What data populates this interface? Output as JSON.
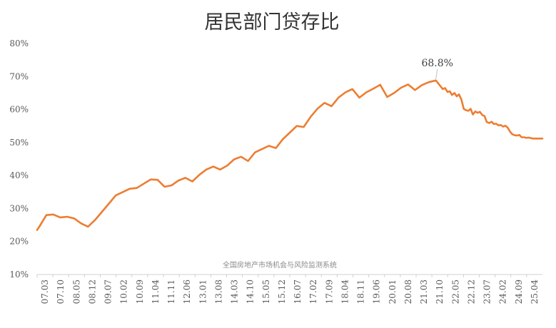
{
  "chart_data": {
    "type": "line",
    "title": "居民部门贷存比",
    "xlabel": "",
    "ylabel": "",
    "ylim": [
      10,
      80
    ],
    "yticks": [
      "80%",
      "70%",
      "60%",
      "50%",
      "40%",
      "30%",
      "20%",
      "10%"
    ],
    "ytick_values": [
      80,
      70,
      60,
      50,
      40,
      30,
      20,
      10
    ],
    "grid": false,
    "legend": "none",
    "line_color": "#ED7D31",
    "categories": [
      "07.03",
      "07.10",
      "08.05",
      "08.12",
      "09.07",
      "10.02",
      "10.09",
      "11.04",
      "11.11",
      "12.06",
      "13.01",
      "13.08",
      "14.03",
      "14.10",
      "15.05",
      "15.12",
      "16.07",
      "17.02",
      "17.09",
      "18.04",
      "18.11",
      "19.06",
      "20.01",
      "20.08",
      "21.03",
      "21.10",
      "22.05",
      "22.12",
      "23.07",
      "24.02",
      "24.09",
      "25.04"
    ],
    "x": [
      2007.17,
      2007.25,
      2007.5,
      2007.75,
      2008.0,
      2008.25,
      2008.5,
      2008.75,
      2009.0,
      2009.25,
      2009.5,
      2009.75,
      2010.0,
      2010.25,
      2010.5,
      2010.75,
      2011.0,
      2011.25,
      2011.5,
      2011.75,
      2012.0,
      2012.25,
      2012.5,
      2012.75,
      2013.0,
      2013.25,
      2013.5,
      2013.75,
      2014.0,
      2014.25,
      2014.5,
      2014.75,
      2015.0,
      2015.25,
      2015.5,
      2015.75,
      2016.0,
      2016.25,
      2016.5,
      2016.75,
      2017.0,
      2017.25,
      2017.5,
      2017.75,
      2018.0,
      2018.25,
      2018.5,
      2018.75,
      2019.0,
      2019.25,
      2019.5,
      2019.75,
      2020.0,
      2020.25,
      2020.5,
      2020.75,
      2021.0,
      2021.25,
      2021.5,
      2021.75,
      2021.83,
      2021.92,
      2022.0,
      2022.08,
      2022.17,
      2022.25,
      2022.33,
      2022.42,
      2022.5,
      2022.58,
      2022.67,
      2022.75,
      2022.83,
      2022.92,
      2023.0,
      2023.08,
      2023.17,
      2023.25,
      2023.33,
      2023.42,
      2023.5,
      2023.58,
      2023.67,
      2023.75,
      2023.83,
      2023.92,
      2024.0,
      2024.08,
      2024.17,
      2024.25,
      2024.33,
      2024.42,
      2024.5,
      2024.58,
      2024.67,
      2024.75,
      2024.83,
      2024.92,
      2025.0,
      2025.08,
      2025.17,
      2025.25,
      2025.33
    ],
    "values": [
      23.5,
      24.5,
      28.0,
      28.2,
      27.3,
      27.5,
      27.0,
      25.5,
      24.5,
      26.5,
      29.0,
      31.5,
      34.0,
      35.0,
      36.0,
      36.2,
      37.5,
      38.8,
      38.7,
      36.6,
      37.0,
      38.5,
      39.3,
      38.2,
      40.2,
      41.8,
      42.7,
      41.8,
      43.0,
      44.9,
      45.7,
      44.4,
      47.0,
      48.0,
      49.0,
      48.3,
      51.0,
      53.0,
      55.0,
      54.7,
      57.8,
      60.3,
      62.0,
      61.0,
      63.6,
      65.2,
      66.2,
      63.6,
      65.2,
      66.3,
      67.5,
      63.8,
      65.0,
      66.6,
      67.6,
      65.9,
      67.4,
      68.3,
      68.8,
      66.2,
      66.5,
      65.3,
      65.5,
      64.4,
      65.0,
      64.0,
      64.6,
      63.0,
      60.2,
      59.8,
      59.6,
      60.2,
      58.5,
      59.4,
      59.0,
      59.3,
      58.3,
      58.0,
      56.2,
      55.9,
      56.3,
      55.6,
      55.7,
      55.2,
      55.3,
      54.8,
      55.1,
      54.5,
      53.2,
      52.5,
      52.2,
      52.1,
      52.3,
      51.6,
      51.6,
      51.4,
      51.5,
      51.3,
      51.2,
      51.2,
      51.2,
      51.2,
      51.2
    ],
    "annotation": "68.8%",
    "watermark": "全国房地产市场机会与风险监测系统"
  }
}
